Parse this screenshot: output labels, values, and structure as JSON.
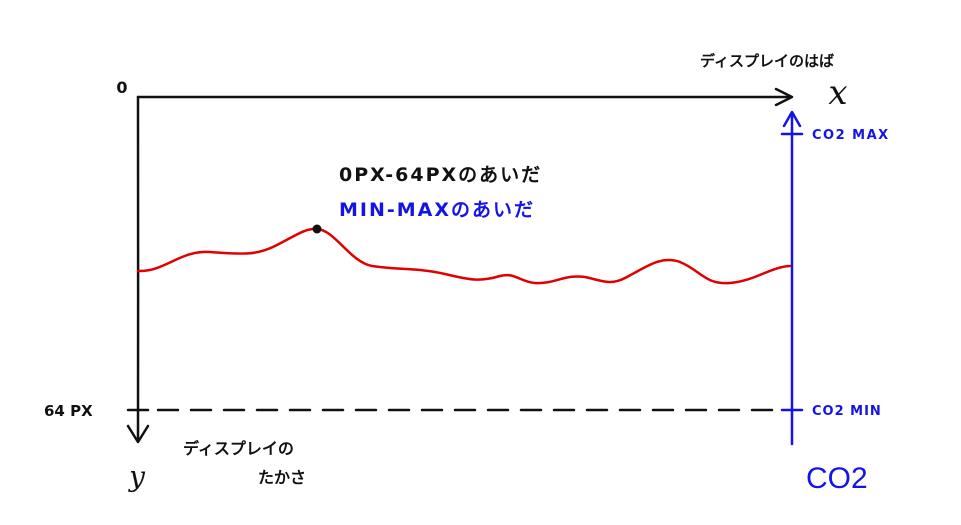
{
  "colors": {
    "ink": "#111111",
    "curve": "#e00000",
    "accent": "#1414e6",
    "dash": "#111111"
  },
  "labels": {
    "origin": "0",
    "width_axis_title": "ディスプレイのはば",
    "x_symbol": "x",
    "y_symbol": "y",
    "height_px": "64 PX",
    "height_axis_title_line1": "ディスプレイの",
    "height_axis_title_line2": "たかさ",
    "range_px": "0PX-64PXのあいだ",
    "range_minmax": "MIN-MAXのあいだ",
    "co2_max": "CO2 MAX",
    "co2_min": "CO2 MIN",
    "co2_axis": "CO2"
  },
  "icons": {
    "x_arrow": "arrow-right-icon",
    "y_arrow": "arrow-down-icon",
    "co2_arrow": "arrow-up-icon",
    "sample_point": "dot-icon"
  }
}
